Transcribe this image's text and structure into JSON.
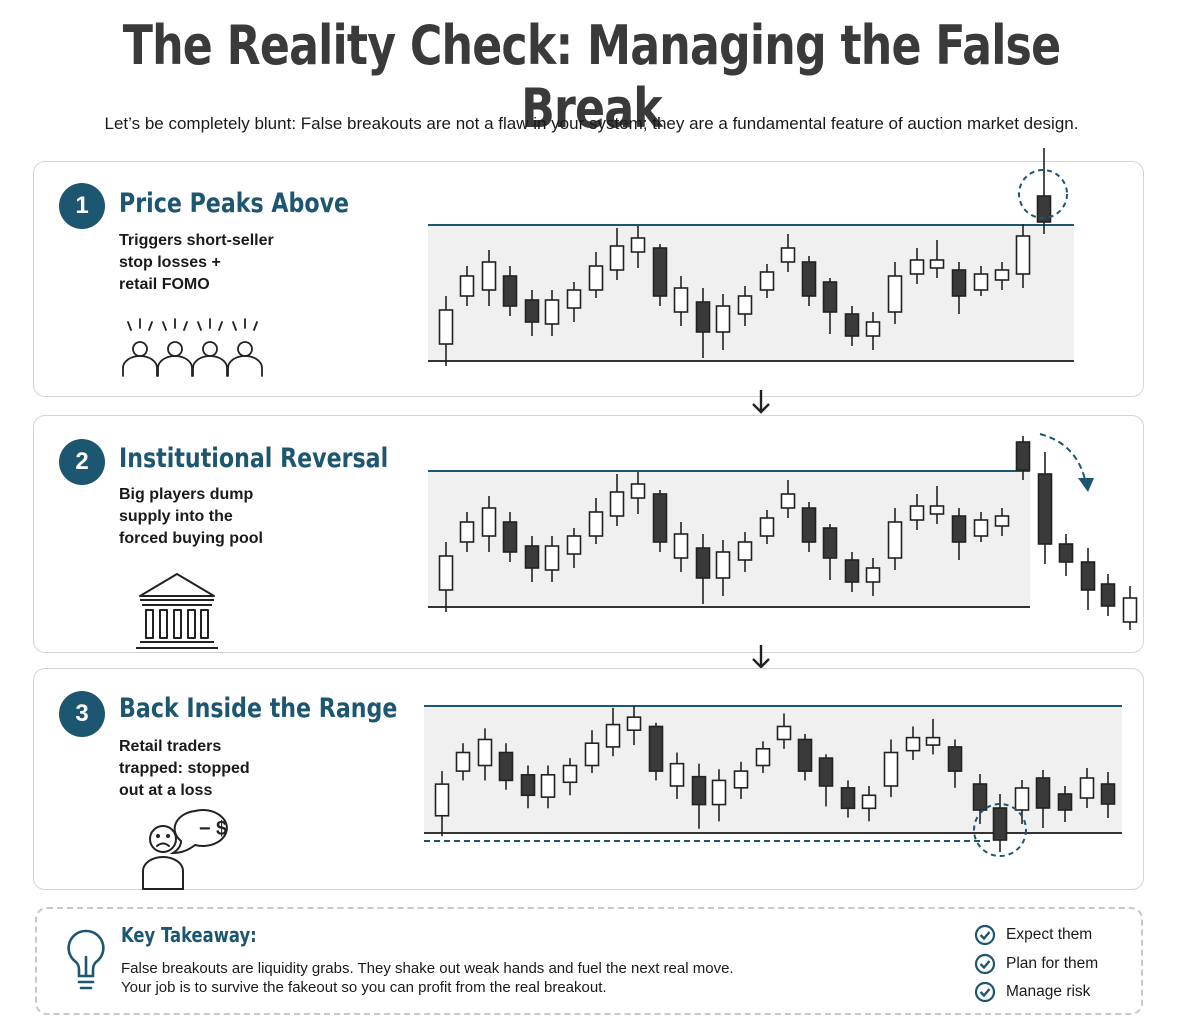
{
  "title": "The Reality Check: Managing the False Break",
  "subtitle": "Let’s be completely blunt: False breakouts are not a flaw in your system; they are a fundamental feature of auction market design.",
  "colors": {
    "accent": "#1d5670",
    "bear": "#3a3a3a",
    "bull": "#ffffff",
    "range_fill": "#f0f0f1"
  },
  "steps": [
    {
      "num": "1",
      "title": "Price Peaks Above",
      "desc_lines": [
        "Triggers short-seller",
        "stop losses +",
        "retail FOMO"
      ],
      "icon": "crowd-icon"
    },
    {
      "num": "2",
      "title": "Institutional Reversal",
      "desc_lines": [
        "Big players dump",
        "supply into the",
        "forced buying pool"
      ],
      "icon": "bank-icon"
    },
    {
      "num": "3",
      "title": "Back Inside the Range",
      "desc_lines": [
        "Retail traders",
        "trapped: stopped",
        "out at a loss"
      ],
      "icon": "sad-trader-icon",
      "bubble_text": "− $"
    }
  ],
  "takeaway": {
    "title": "Key Takeaway:",
    "lines": [
      "False breakouts are liquidity grabs. They shake out weak hands and fuel the next real move.",
      "Your job is to survive the fakeout so you can profit from the real breakout."
    ],
    "icon": "lightbulb-icon",
    "checklist": [
      "Expect them",
      "Plan for them",
      "Manage risk"
    ]
  }
}
